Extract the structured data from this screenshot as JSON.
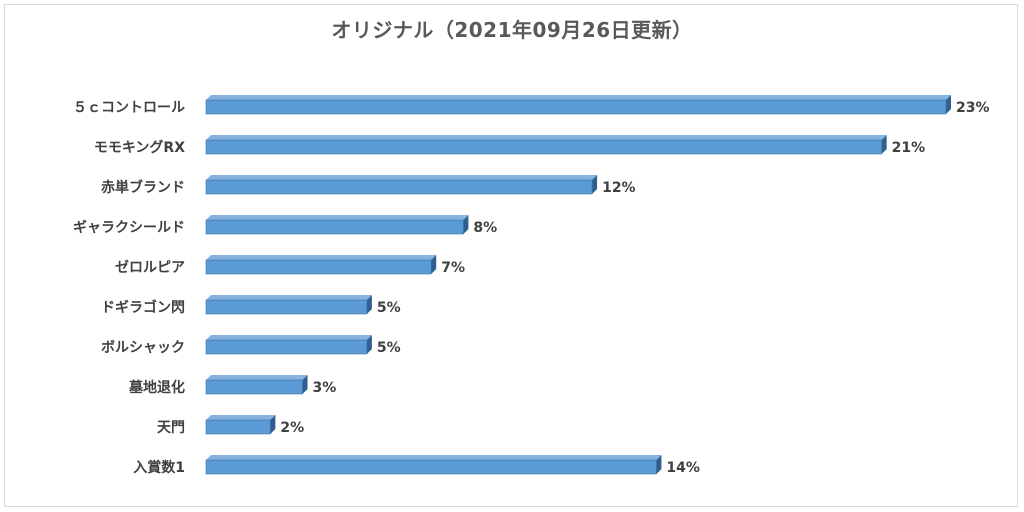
{
  "chart_data": {
    "type": "bar",
    "orientation": "horizontal",
    "title": "オリジナル（2021年09月26日更新）",
    "categories": [
      "５ｃコントロール",
      "モモキングRX",
      "赤単ブランド",
      "ギャラクシールド",
      "ゼロルピア",
      "ドギラゴン閃",
      "ボルシャック",
      "墓地退化",
      "天門",
      "入賞数1"
    ],
    "values": [
      23,
      21,
      12,
      8,
      7,
      5,
      5,
      3,
      2,
      14
    ],
    "value_labels": [
      "23%",
      "21%",
      "12%",
      "8%",
      "7%",
      "5%",
      "5%",
      "3%",
      "2%",
      "14%"
    ],
    "xlim": [
      0,
      23
    ],
    "grid": false,
    "legend": "none",
    "colors": {
      "bar": "#5b9bd5",
      "bar_side": "#2e5f8f",
      "bar_top": "#86b4e0"
    }
  }
}
